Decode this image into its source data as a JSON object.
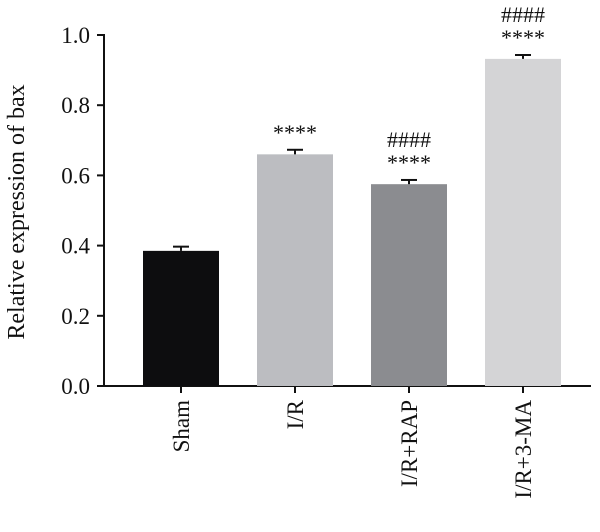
{
  "chart_data": {
    "type": "bar",
    "title": "",
    "xlabel": "",
    "ylabel": "Relative expression of bax",
    "ylim": [
      0,
      1.0
    ],
    "yticks": [
      "0.0",
      "0.2",
      "0.4",
      "0.6",
      "0.8",
      "1.0"
    ],
    "grid": false,
    "categories": [
      "Sham",
      "I/R",
      "I/R+RAP",
      "I/R+3-MA"
    ],
    "values": [
      0.385,
      0.66,
      0.575,
      0.932
    ],
    "errors": [
      0.012,
      0.013,
      0.012,
      0.011
    ],
    "annotations": [
      [],
      [
        "****"
      ],
      [
        "####",
        "****"
      ],
      [
        "####",
        "****"
      ]
    ],
    "colors": [
      "#0d0d0f",
      "#bcbdc1",
      "#8b8c90",
      "#d4d4d6"
    ]
  }
}
